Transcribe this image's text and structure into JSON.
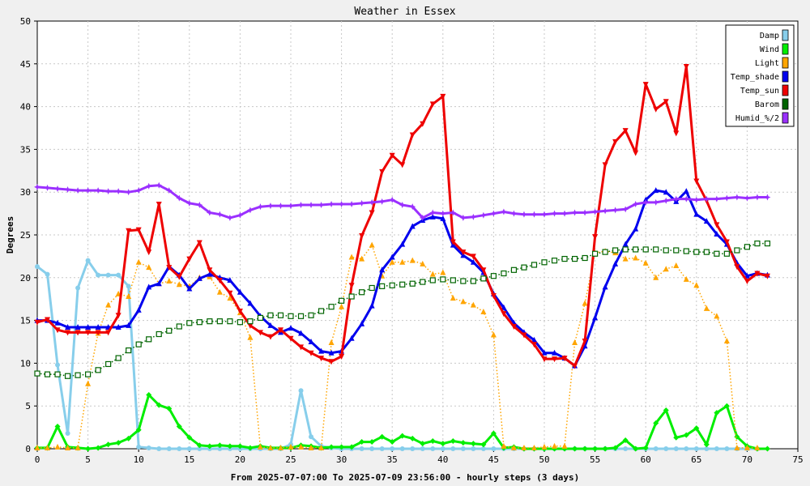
{
  "chart_data": {
    "type": "line",
    "title": "Weather in Essex",
    "xlabel": "From 2025-07-07:00 To 2025-07-09 23:56:00 - hourly steps (3 days)",
    "ylabel": "Degrees",
    "xlim": [
      0,
      75
    ],
    "ylim": [
      0,
      50
    ],
    "xticks": [
      0,
      5,
      10,
      15,
      20,
      25,
      30,
      35,
      40,
      45,
      50,
      55,
      60,
      65,
      70,
      75
    ],
    "yticks": [
      0,
      5,
      10,
      15,
      20,
      25,
      30,
      35,
      40,
      45,
      50
    ],
    "grid": true,
    "legend_position": "top-right",
    "series": [
      {
        "name": "Damp",
        "color": "#87ceeb",
        "style": "solid",
        "marker": "circle",
        "values": [
          21.3,
          20.4,
          9.8,
          1.8,
          18.8,
          22.0,
          20.3,
          20.3,
          20.3,
          19.0,
          0.2,
          0.1,
          0,
          0,
          0,
          0,
          0,
          0,
          0,
          0,
          0,
          0,
          0,
          0,
          0,
          0.5,
          6.8,
          1.4,
          0.3,
          0.1,
          0,
          0,
          0,
          0,
          0,
          0,
          0,
          0,
          0,
          0,
          0,
          0,
          0,
          0,
          0,
          0,
          0,
          0,
          0,
          0,
          0,
          0,
          0,
          0,
          0,
          0,
          0,
          0,
          0,
          0,
          0,
          0,
          0,
          0,
          0,
          0,
          0,
          0,
          0,
          0,
          0,
          0
        ]
      },
      {
        "name": "Wind",
        "color": "#00ee00",
        "style": "solid",
        "marker": "diamond",
        "values": [
          0.1,
          0.1,
          2.6,
          0.2,
          0.1,
          0,
          0.1,
          0.5,
          0.7,
          1.2,
          2.2,
          6.3,
          5.1,
          4.7,
          2.6,
          1.3,
          0.4,
          0.3,
          0.4,
          0.3,
          0.3,
          0.1,
          0.3,
          0.1,
          0.1,
          0.1,
          0.4,
          0.3,
          0.1,
          0.2,
          0.2,
          0.2,
          0.8,
          0.8,
          1.4,
          0.8,
          1.5,
          1.2,
          0.6,
          0.9,
          0.6,
          0.9,
          0.7,
          0.6,
          0.5,
          1.8,
          0.1,
          0.2,
          0,
          0,
          0,
          0,
          0,
          0,
          0,
          0,
          0,
          0.1,
          1.0,
          0,
          0.1,
          3.0,
          4.5,
          1.3,
          1.6,
          2.4,
          0.5,
          4.2,
          5.0,
          1.4,
          0.3,
          0,
          0
        ]
      },
      {
        "name": "Light",
        "color": "#ffa500",
        "style": "dotted",
        "marker": "triangle",
        "values": [
          0.1,
          0.1,
          0.2,
          0.1,
          0.1,
          7.6,
          13.5,
          16.8,
          18.1,
          17.8,
          21.8,
          21.2,
          19.3,
          19.6,
          19.2,
          19.0,
          20.0,
          20.1,
          18.3,
          17.6,
          15.9,
          13.0,
          0.2,
          0.1,
          0.1,
          0.2,
          0.2,
          0.1,
          0.1,
          12.4,
          16.6,
          22.4,
          22.2,
          23.8,
          20.2,
          21.8,
          21.8,
          22.0,
          21.6,
          20.4,
          20.6,
          17.6,
          17.2,
          16.8,
          16.0,
          13.3,
          0.3,
          0.1,
          0.1,
          0.1,
          0.2,
          0.3,
          0.3,
          12.4,
          17.0,
          22.9,
          23.1,
          22.9,
          22.2,
          22.3,
          21.7,
          20.0,
          21.0,
          21.4,
          19.8,
          19.1,
          16.4,
          15.5,
          12.6,
          0.1,
          0.1,
          0.1
        ]
      },
      {
        "name": "Temp_shade",
        "color": "#0000ee",
        "style": "solid",
        "marker": "triangle",
        "values": [
          15.0,
          15.0,
          14.7,
          14.2,
          14.2,
          14.2,
          14.2,
          14.2,
          14.2,
          14.4,
          16.2,
          18.9,
          19.3,
          21.3,
          20.3,
          18.7,
          19.9,
          20.4,
          20.0,
          19.7,
          18.3,
          17.0,
          15.5,
          14.4,
          13.6,
          14.1,
          13.5,
          12.5,
          11.4,
          11.2,
          11.4,
          12.9,
          14.6,
          16.7,
          20.9,
          22.4,
          23.9,
          26.0,
          26.7,
          27.1,
          26.9,
          23.8,
          22.6,
          21.8,
          20.6,
          18.1,
          16.5,
          14.7,
          13.6,
          12.7,
          11.2,
          11.2,
          10.6,
          9.7,
          12.0,
          15.3,
          18.9,
          21.6,
          23.9,
          25.7,
          29.1,
          30.2,
          30.0,
          28.9,
          30.1,
          27.4,
          26.6,
          25.1,
          23.9,
          21.7,
          20.2,
          20.5,
          20.3
        ]
      },
      {
        "name": "Temp_sun",
        "color": "#ee0000",
        "style": "solid",
        "marker": "triangle-down",
        "values": [
          14.8,
          15.1,
          13.9,
          13.6,
          13.6,
          13.6,
          13.6,
          13.6,
          15.6,
          25.5,
          25.6,
          23.0,
          28.6,
          21.2,
          20.1,
          22.2,
          24.1,
          20.9,
          19.7,
          18.2,
          16.1,
          14.4,
          13.6,
          13.1,
          13.9,
          12.9,
          11.9,
          11.2,
          10.6,
          10.2,
          10.8,
          19.1,
          24.9,
          27.6,
          32.4,
          34.3,
          33.2,
          36.7,
          38.0,
          40.3,
          41.2,
          24.2,
          23.0,
          22.5,
          20.9,
          17.9,
          15.8,
          14.3,
          13.3,
          12.2,
          10.5,
          10.5,
          10.6,
          9.7,
          12.6,
          24.8,
          33.2,
          35.9,
          37.2,
          34.6,
          42.6,
          39.7,
          40.6,
          36.9,
          44.7,
          31.3,
          29.0,
          26.2,
          24.2,
          21.3,
          19.6,
          20.5,
          20.2
        ]
      },
      {
        "name": "Barom",
        "color": "#006400",
        "style": "dotted",
        "marker": "square",
        "values": [
          8.8,
          8.7,
          8.7,
          8.5,
          8.6,
          8.7,
          9.2,
          9.9,
          10.6,
          11.5,
          12.2,
          12.8,
          13.4,
          13.8,
          14.3,
          14.7,
          14.8,
          14.9,
          14.9,
          14.9,
          14.8,
          14.9,
          15.3,
          15.6,
          15.6,
          15.5,
          15.5,
          15.6,
          16.1,
          16.6,
          17.3,
          17.8,
          18.3,
          18.8,
          19.0,
          19.1,
          19.2,
          19.3,
          19.5,
          19.7,
          19.8,
          19.7,
          19.6,
          19.6,
          19.9,
          20.2,
          20.5,
          20.9,
          21.2,
          21.5,
          21.8,
          22.0,
          22.2,
          22.2,
          22.3,
          22.8,
          23.0,
          23.2,
          23.3,
          23.3,
          23.3,
          23.3,
          23.2,
          23.2,
          23.1,
          23.0,
          23.0,
          22.8,
          22.8,
          23.2,
          23.6,
          24.0,
          24.0
        ]
      },
      {
        "name": "Humid_%/2",
        "color": "#9b30ff",
        "style": "solid",
        "marker": "star",
        "values": [
          30.6,
          30.5,
          30.4,
          30.3,
          30.2,
          30.2,
          30.2,
          30.1,
          30.1,
          30.0,
          30.2,
          30.7,
          30.8,
          30.2,
          29.3,
          28.7,
          28.5,
          27.6,
          27.4,
          27.0,
          27.3,
          27.9,
          28.3,
          28.4,
          28.4,
          28.4,
          28.5,
          28.5,
          28.5,
          28.6,
          28.6,
          28.6,
          28.7,
          28.8,
          28.9,
          29.1,
          28.5,
          28.3,
          27.0,
          27.6,
          27.5,
          27.6,
          27.0,
          27.1,
          27.3,
          27.5,
          27.7,
          27.5,
          27.4,
          27.4,
          27.4,
          27.5,
          27.5,
          27.6,
          27.6,
          27.7,
          27.8,
          27.9,
          28.0,
          28.6,
          28.8,
          28.8,
          29.0,
          29.2,
          29.2,
          29.1,
          29.2,
          29.2,
          29.3,
          29.4,
          29.3,
          29.4,
          29.4
        ]
      }
    ]
  }
}
